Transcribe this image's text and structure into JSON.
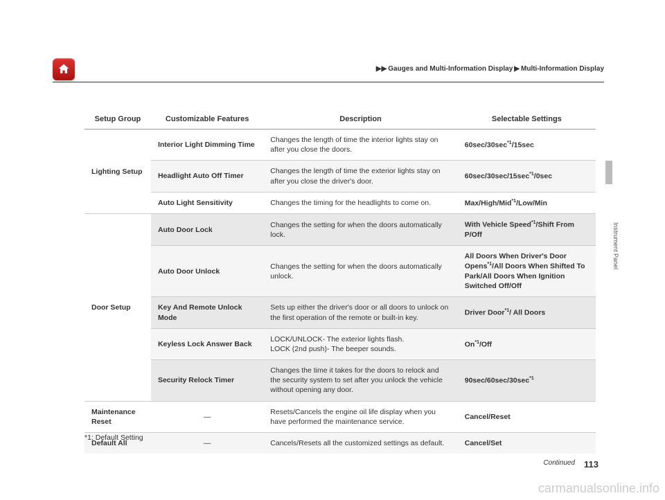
{
  "breadcrumb": {
    "part1": "Gauges and Multi-Information Display",
    "part2": "Multi-Information Display"
  },
  "side_tab": "Instrument Panel",
  "headers": {
    "group": "Setup Group",
    "feature": "Customizable Features",
    "desc": "Description",
    "settings": "Selectable Settings"
  },
  "rows": [
    {
      "group": "Lighting Setup",
      "group_rowspan": 3,
      "bg": "row-white",
      "feature": "Interior Light Dimming Time",
      "desc": "Changes the length of time the interior lights stay on after you close the doors.",
      "settings_html": "60sec/30sec<sup>*1</sup>/15sec"
    },
    {
      "bg": "row-light",
      "feature": "Headlight Auto Off Timer",
      "desc": "Changes the length of time the exterior lights stay on after you close the driver's door.",
      "settings_html": "60sec/30sec/15sec<sup>*1</sup>/0sec"
    },
    {
      "bg": "row-white",
      "feature": "Auto Light Sensitivity",
      "desc": "Changes the timing for the headlights to come on.",
      "settings_html": "Max/High/Mid<sup>*1</sup>/Low/Min"
    },
    {
      "group": "Door Setup",
      "group_rowspan": 5,
      "bg": "row-dark",
      "feature": "Auto Door Lock",
      "desc": "Changes the setting for when the doors automatically lock.",
      "settings_html": "With Vehicle Speed<sup>*1</sup>/Shift From P/Off"
    },
    {
      "bg": "row-light",
      "feature": "Auto Door Unlock",
      "desc": "Changes the setting for when the doors automatically unlock.",
      "settings_html": "All Doors When Driver's Door Opens<sup>*1</sup>/All Doors When Shifted To Park/All Doors When Ignition Switched Off/Off"
    },
    {
      "bg": "row-dark",
      "feature": "Key And Remote Unlock Mode",
      "desc": "Sets up either the driver's door or all doors to unlock on the first operation of the remote or built-in key.",
      "settings_html": "Driver Door<sup>*1</sup>/ All Doors"
    },
    {
      "bg": "row-light",
      "feature": "Keyless Lock Answer Back",
      "desc": "LOCK/UNLOCK- The exterior lights flash.\nLOCK (2nd push)- The beeper sounds.",
      "settings_html": "On<sup>*1</sup>/Off"
    },
    {
      "bg": "row-dark",
      "feature": "Security Relock Timer",
      "desc": "Changes the time it takes for the doors to relock and the security system to set after you unlock the vehicle without opening any door.",
      "settings_html": "90sec/60sec/30sec<sup>*1</sup>"
    },
    {
      "group": "Maintenance Reset",
      "group_rowspan": 1,
      "bg": "row-white",
      "feature": "—",
      "desc": "Resets/Cancels the engine oil life display when you have performed the maintenance service.",
      "settings_html": "Cancel/Reset"
    },
    {
      "group": "Default All",
      "group_rowspan": 1,
      "bg": "row-light",
      "feature": "—",
      "desc": "Cancels/Resets all the customized settings as default.",
      "settings_html": "Cancel/Set"
    }
  ],
  "footnote": "*1: Default Setting",
  "continued": "Continued",
  "page_num": "113",
  "watermark": "carmanualsonline.info"
}
